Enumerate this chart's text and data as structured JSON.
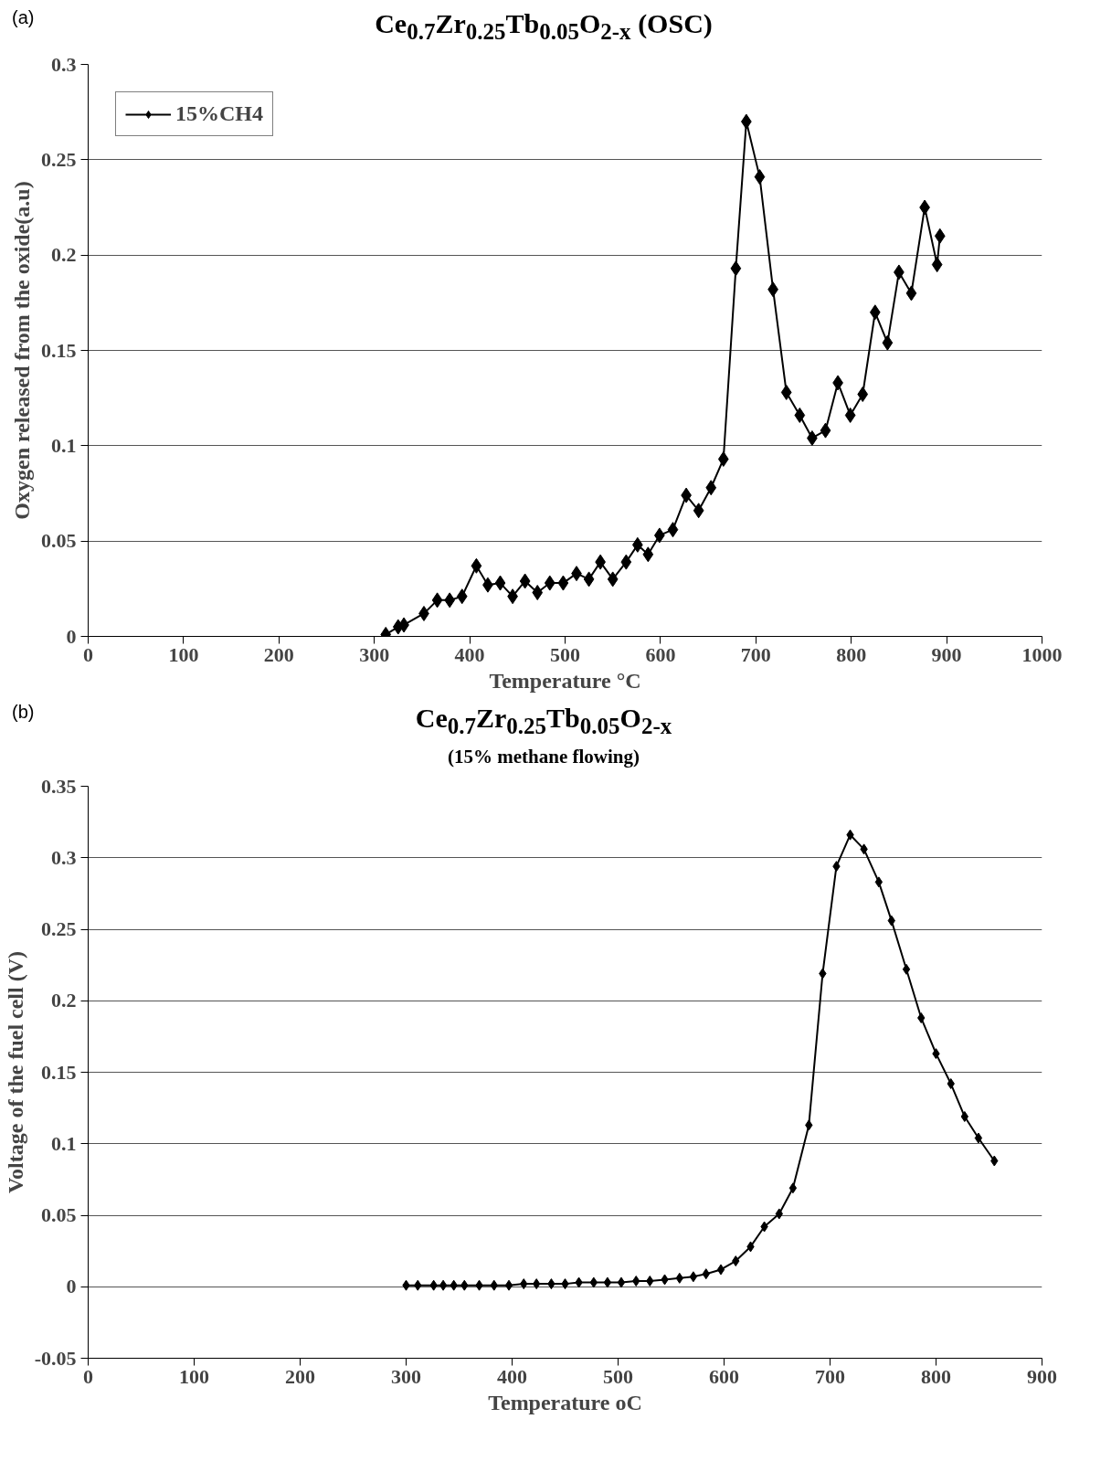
{
  "chart_data": [
    {
      "type": "line",
      "annotations": [
        "(a)"
      ],
      "title": "Ce$_{0.7}$Zr$_{0.25}$Tb$_{0.05}$O$_{2-x}$ (OSC)",
      "xlabel": "Temperature °C",
      "ylabel": "Oxygen released from the oxide(a.u)",
      "xlim": [
        0,
        1000
      ],
      "xticks": [
        0,
        100,
        200,
        300,
        400,
        500,
        600,
        700,
        800,
        900,
        1000
      ],
      "ylim": [
        0,
        0.3
      ],
      "yticks": [
        0,
        0.05,
        0.1,
        0.15,
        0.2,
        0.25,
        0.3
      ],
      "grid": "y",
      "legend": "top left",
      "marker": "diamond",
      "line_style": "solid",
      "series": [
        {
          "name": "15%CH4",
          "color": "#000000",
          "x": [
            312,
            325,
            331,
            352,
            366,
            379,
            392,
            407,
            419,
            432,
            445,
            458,
            471,
            484,
            498,
            512,
            525,
            537,
            550,
            564,
            576,
            587,
            599,
            613,
            627,
            640,
            653,
            666,
            679,
            690,
            704,
            718,
            732,
            746,
            759,
            773,
            786,
            799,
            812,
            825,
            838,
            850,
            863,
            877,
            890,
            893
          ],
          "values": [
            0.001,
            0.005,
            0.006,
            0.012,
            0.019,
            0.019,
            0.021,
            0.037,
            0.027,
            0.028,
            0.021,
            0.029,
            0.023,
            0.028,
            0.028,
            0.033,
            0.03,
            0.039,
            0.03,
            0.039,
            0.048,
            0.043,
            0.053,
            0.056,
            0.074,
            0.066,
            0.078,
            0.093,
            0.193,
            0.27,
            0.241,
            0.182,
            0.128,
            0.116,
            0.104,
            0.108,
            0.133,
            0.116,
            0.127,
            0.17,
            0.154,
            0.191,
            0.18,
            0.225,
            0.195,
            0.21
          ]
        }
      ]
    },
    {
      "type": "line",
      "annotations": [
        "(b)"
      ],
      "title": "Ce$_{0.7}$Zr$_{0.25}$Tb$_{0.05}$O$_{2-x}$",
      "subtitle": "(15% methane flowing)",
      "xlabel": "Temperature oC",
      "ylabel": "Voltage of the fuel cell (V)",
      "xlim": [
        0,
        900
      ],
      "xticks": [
        0,
        100,
        200,
        300,
        400,
        500,
        600,
        700,
        800,
        900
      ],
      "ylim": [
        -0.05,
        0.35
      ],
      "yticks": [
        -0.05,
        0,
        0.05,
        0.1,
        0.15,
        0.2,
        0.25,
        0.3,
        0.35
      ],
      "grid": "y",
      "marker": "diamond",
      "line_style": "solid",
      "series": [
        {
          "color": "#000000",
          "x": [
            300,
            311,
            326,
            335,
            345,
            355,
            369,
            383,
            397,
            411,
            423,
            437,
            450,
            463,
            477,
            490,
            503,
            517,
            530,
            544,
            558,
            571,
            583,
            597,
            611,
            625,
            638,
            652,
            665,
            680,
            693,
            706,
            719,
            732,
            746,
            758,
            772,
            786,
            800,
            814,
            827,
            840,
            855
          ],
          "values": [
            0.001,
            0.001,
            0.001,
            0.001,
            0.001,
            0.001,
            0.001,
            0.001,
            0.001,
            0.002,
            0.002,
            0.002,
            0.002,
            0.003,
            0.003,
            0.003,
            0.003,
            0.004,
            0.004,
            0.005,
            0.006,
            0.007,
            0.009,
            0.012,
            0.018,
            0.028,
            0.042,
            0.051,
            0.069,
            0.113,
            0.219,
            0.294,
            0.316,
            0.306,
            0.283,
            0.256,
            0.222,
            0.188,
            0.163,
            0.142,
            0.119,
            0.104,
            0.088
          ]
        }
      ]
    }
  ]
}
